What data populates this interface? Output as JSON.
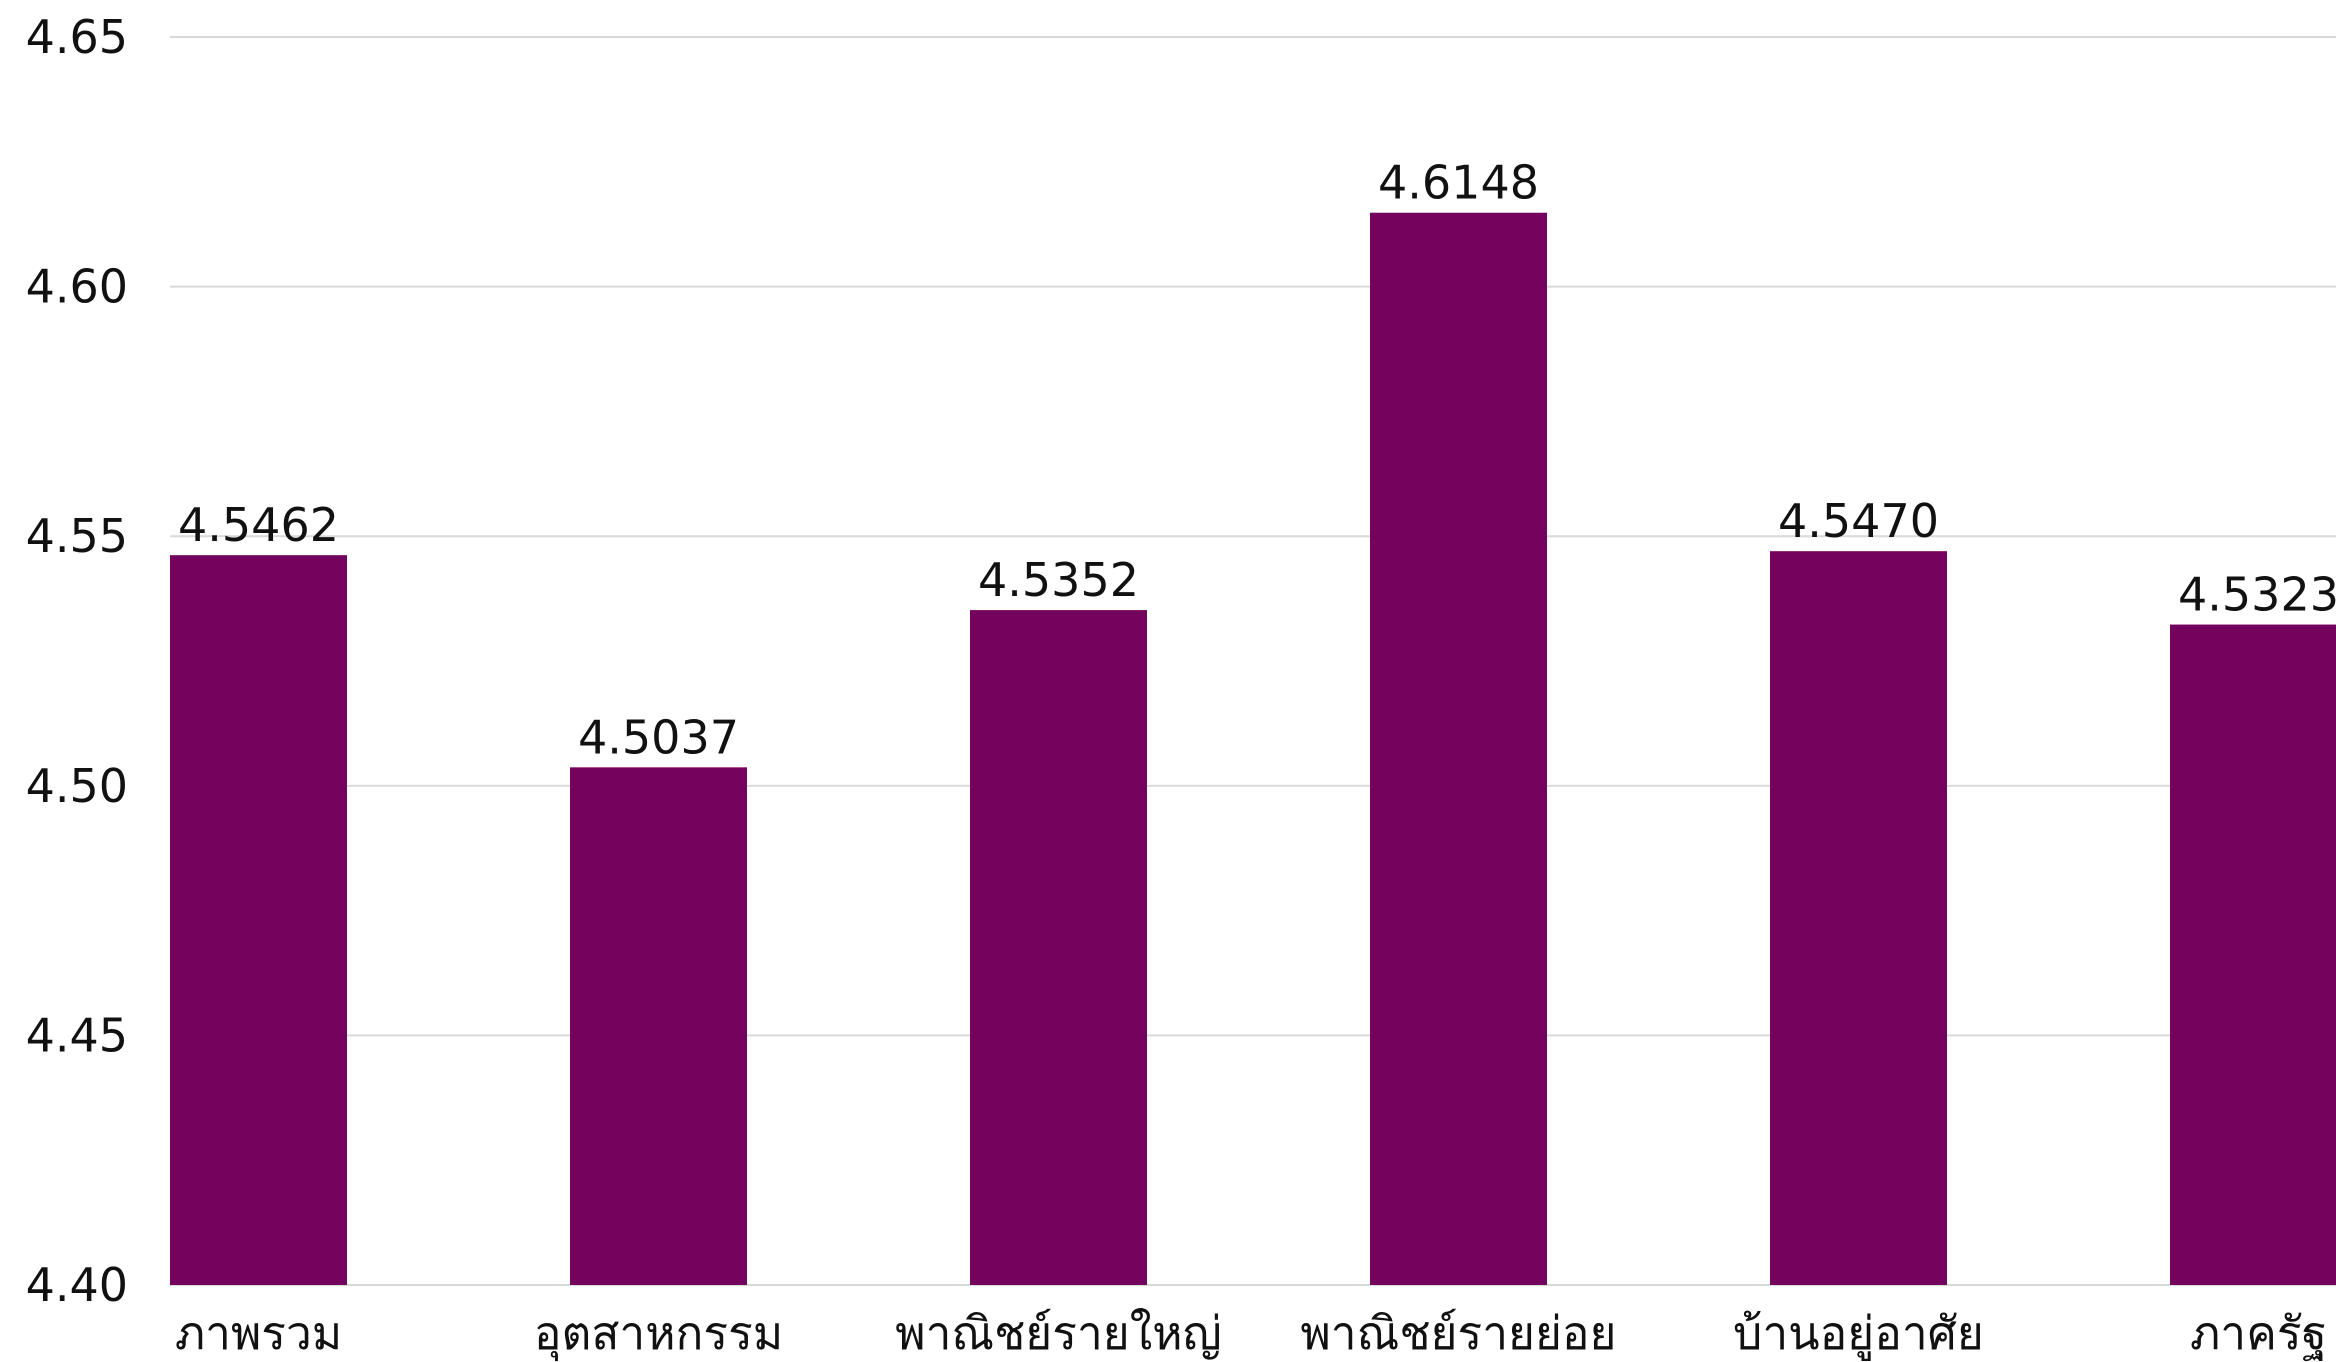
{
  "chart_data": {
    "type": "bar",
    "title": "",
    "xlabel": "",
    "ylabel": "",
    "categories": [
      "ภาพรวม",
      "อุตสาหกรรม",
      "พาณิชย์รายใหญ่",
      "พาณิชย์รายย่อย",
      "บ้านอยู่อาศัย",
      "ภาครัฐ"
    ],
    "values": [
      4.5462,
      4.5037,
      4.5352,
      4.6148,
      4.547,
      4.5323
    ],
    "value_labels": [
      "4.5462",
      "4.5037",
      "4.5352",
      "4.6148",
      "4.5470",
      "4.5323"
    ],
    "ylim": [
      4.4,
      4.65
    ],
    "yticks": [
      4.4,
      4.45,
      4.5,
      4.55,
      4.6,
      4.65
    ],
    "ytick_labels": [
      "4.40",
      "4.45",
      "4.50",
      "4.55",
      "4.60",
      "4.65"
    ],
    "grid": true,
    "legend": "none",
    "colors": {
      "bar": "#74035d",
      "grid": "#d9d9d9",
      "text": "#111111"
    }
  }
}
